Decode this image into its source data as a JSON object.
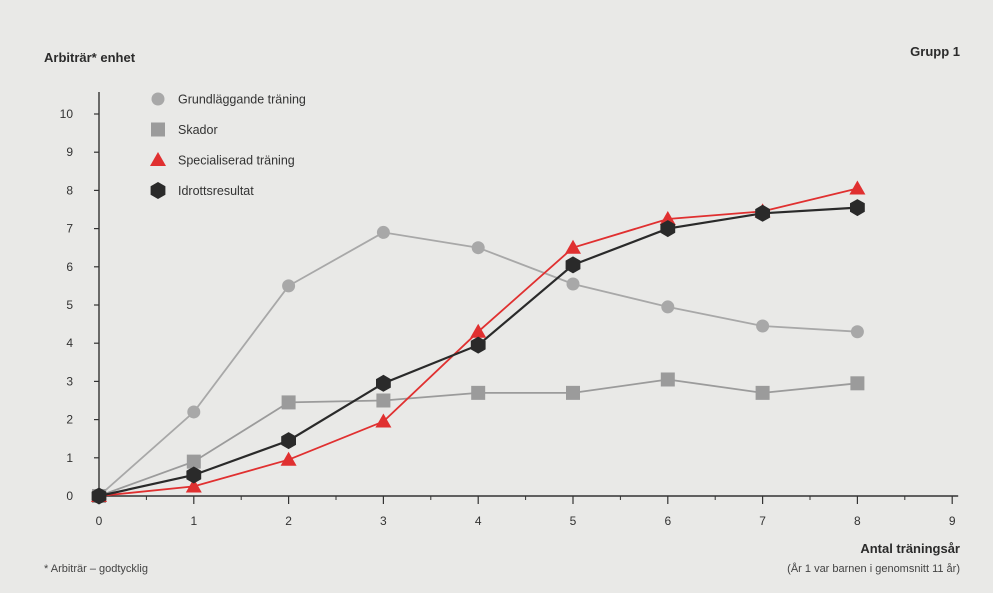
{
  "chart_data": {
    "type": "line",
    "title": "",
    "ylabel": "Arbiträr* enhet",
    "xlabel": "Antal träningsår",
    "group_label": "Grupp 1",
    "footnote": "* Arbiträr – godtycklig",
    "xnote": "(År 1 var barnen i genomsnitt 11 år)",
    "x": [
      0,
      1,
      2,
      3,
      4,
      5,
      6,
      7,
      8
    ],
    "xlim": [
      0,
      9
    ],
    "ylim": [
      0,
      10
    ],
    "xticks": [
      "0",
      "1",
      "2",
      "3",
      "4",
      "5",
      "6",
      "7",
      "8",
      "9"
    ],
    "yticks": [
      "0",
      "1",
      "2",
      "3",
      "4",
      "5",
      "6",
      "7",
      "8",
      "9",
      "10"
    ],
    "grid": false,
    "legend_position": "top-left",
    "series": [
      {
        "name": "Grundläggande träning",
        "marker": "circle",
        "color": "#a8a8a8",
        "line_color": "#a8a8a8",
        "values": [
          0,
          2.2,
          5.5,
          6.9,
          6.5,
          5.55,
          4.95,
          4.45,
          4.3
        ]
      },
      {
        "name": "Skador",
        "marker": "square",
        "color": "#9b9b9b",
        "line_color": "#9b9b9b",
        "values": [
          0,
          0.9,
          2.45,
          2.5,
          2.7,
          2.7,
          3.05,
          2.7,
          2.95
        ]
      },
      {
        "name": "Specialiserad träning",
        "marker": "triangle",
        "color": "#e03030",
        "line_color": "#e03030",
        "values": [
          0,
          0.25,
          0.95,
          1.95,
          4.3,
          6.5,
          7.25,
          7.45,
          8.05
        ]
      },
      {
        "name": "Idrottsresultat",
        "marker": "hexagon",
        "color": "#2a2a2a",
        "line_color": "#2a2a2a",
        "values": [
          0,
          0.55,
          1.45,
          2.95,
          3.95,
          6.05,
          7.0,
          7.4,
          7.55
        ]
      }
    ]
  }
}
